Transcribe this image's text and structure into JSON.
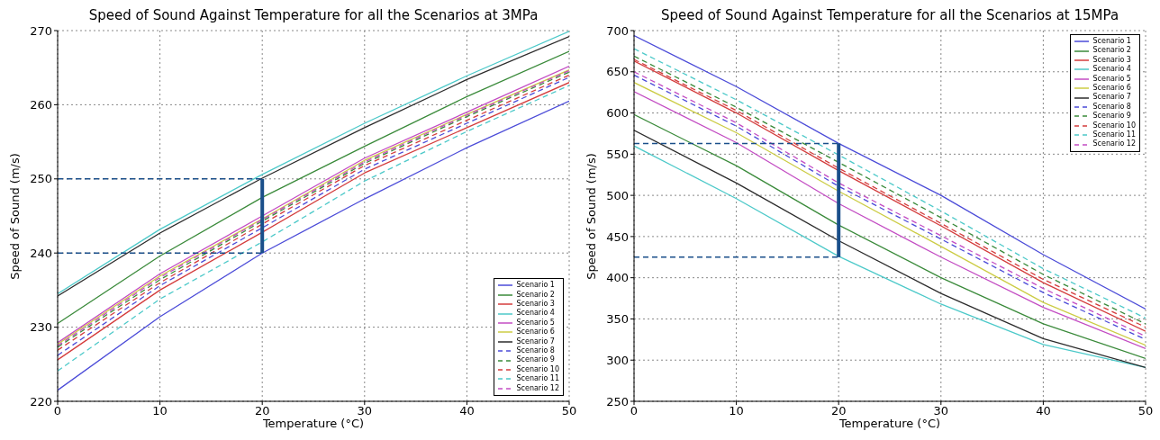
{
  "chart_data": [
    {
      "type": "line",
      "title": "Speed of Sound Against Temperature for all the Scenarios at 3MPa",
      "xlabel": "Temperature (°C)",
      "ylabel": "Speed of Sound (m/s)",
      "x": [
        0,
        10,
        20,
        30,
        40,
        50
      ],
      "xlim": [
        0,
        50
      ],
      "xticks": [
        0,
        10,
        20,
        30,
        40,
        50
      ],
      "ylim": [
        220,
        270
      ],
      "yticks": [
        220,
        230,
        240,
        250,
        260,
        270
      ],
      "grid": true,
      "legend": "bottom right",
      "line_style": "solid",
      "series": [
        {
          "name": "Scenario 1",
          "color": "#4b4bd8",
          "values": [
            221.5,
            231.4,
            240.0,
            247.3,
            254.2,
            260.5
          ]
        },
        {
          "name": "Scenario 2",
          "color": "#3a8a3a",
          "values": [
            230.5,
            239.6,
            247.5,
            254.4,
            261.1,
            267.2
          ]
        },
        {
          "name": "Scenario 3",
          "color": "#d43c3c",
          "values": [
            225.6,
            235.0,
            242.8,
            250.8,
            256.9,
            263.0
          ]
        },
        {
          "name": "Scenario 4",
          "color": "#4cc9c9",
          "values": [
            234.5,
            243.2,
            250.6,
            257.5,
            263.9,
            269.9
          ]
        },
        {
          "name": "Scenario 5",
          "color": "#c34cc3",
          "values": [
            227.9,
            237.2,
            245.0,
            252.8,
            259.0,
            265.2
          ]
        },
        {
          "name": "Scenario 6",
          "color": "#cccc44",
          "values": [
            227.7,
            236.9,
            244.6,
            252.5,
            258.7,
            264.7
          ]
        },
        {
          "name": "Scenario 7",
          "color": "#2b2b2b",
          "values": [
            234.2,
            242.7,
            250.1,
            256.9,
            263.4,
            269.2
          ]
        },
        {
          "name": "Scenario 8",
          "color": "#4b4bd8",
          "line_style": "dashed",
          "values": [
            226.2,
            235.6,
            243.4,
            251.3,
            257.5,
            263.7
          ]
        },
        {
          "name": "Scenario 9",
          "color": "#3a8a3a",
          "line_style": "dashed",
          "values": [
            227.3,
            236.4,
            244.3,
            252.1,
            258.4,
            264.4
          ]
        },
        {
          "name": "Scenario 10",
          "color": "#d43c3c",
          "line_style": "dashed",
          "values": [
            226.9,
            236.0,
            243.9,
            251.8,
            257.9,
            264.0
          ]
        },
        {
          "name": "Scenario 11",
          "color": "#4cc9c9",
          "line_style": "dashed",
          "values": [
            224.1,
            233.8,
            241.5,
            249.7,
            256.4,
            262.6
          ]
        },
        {
          "name": "Scenario 12",
          "color": "#c34cc3",
          "line_style": "dashed",
          "values": [
            227.5,
            236.7,
            244.5,
            252.3,
            258.6,
            264.6
          ]
        },
        {
          "color": "#1a4f8a",
          "line_style": "dashed",
          "values": [
            250,
            250,
            250,
            null,
            null,
            null
          ]
        },
        {
          "color": "#1a4f8a",
          "line_style": "dashed",
          "values": [
            240,
            240,
            240,
            null,
            null,
            null
          ],
          "errors": [
            null,
            null,
            [
              240,
              250
            ],
            null,
            null,
            null
          ]
        }
      ]
    },
    {
      "type": "line",
      "title": "Speed of Sound Against Temperature for all the Scenarios at 15MPa",
      "xlabel": "Temperature (°C)",
      "ylabel": "Speed of Sound (m/s)",
      "x": [
        0,
        10,
        20,
        30,
        40,
        50
      ],
      "xlim": [
        0,
        50
      ],
      "xticks": [
        0,
        10,
        20,
        30,
        40,
        50
      ],
      "ylim": [
        250,
        700
      ],
      "yticks": [
        250,
        300,
        350,
        400,
        450,
        500,
        550,
        600,
        650,
        700
      ],
      "grid": true,
      "legend": "top right",
      "line_style": "solid",
      "series": [
        {
          "name": "Scenario 1",
          "color": "#4b4bd8",
          "values": [
            694,
            632,
            563,
            500,
            428,
            362
          ]
        },
        {
          "name": "Scenario 2",
          "color": "#3a8a3a",
          "values": [
            598,
            536,
            464,
            400,
            344,
            302
          ]
        },
        {
          "name": "Scenario 3",
          "color": "#d43c3c",
          "values": [
            663,
            600,
            530,
            463,
            394,
            335
          ]
        },
        {
          "name": "Scenario 4",
          "color": "#4cc9c9",
          "values": [
            560,
            496,
            426,
            368,
            319,
            291
          ]
        },
        {
          "name": "Scenario 5",
          "color": "#c34cc3",
          "values": [
            626,
            564,
            490,
            425,
            364,
            314
          ]
        },
        {
          "name": "Scenario 6",
          "color": "#cccc44",
          "values": [
            637,
            576,
            505,
            438,
            370,
            318
          ]
        },
        {
          "name": "Scenario 7",
          "color": "#2b2b2b",
          "values": [
            579,
            515,
            445,
            381,
            326,
            291
          ]
        },
        {
          "name": "Scenario 8",
          "color": "#4b4bd8",
          "line_style": "dashed",
          "values": [
            646,
            584,
            511,
            447,
            382,
            325
          ]
        },
        {
          "name": "Scenario 9",
          "color": "#3a8a3a",
          "line_style": "dashed",
          "values": [
            669,
            607,
            540,
            473,
            404,
            344
          ]
        },
        {
          "name": "Scenario 10",
          "color": "#d43c3c",
          "line_style": "dashed",
          "values": [
            665,
            603,
            533,
            466,
            398,
            340
          ]
        },
        {
          "name": "Scenario 11",
          "color": "#4cc9c9",
          "line_style": "dashed",
          "values": [
            678,
            616,
            549,
            481,
            411,
            351
          ]
        },
        {
          "name": "Scenario 12",
          "color": "#c34cc3",
          "line_style": "dashed",
          "values": [
            650,
            588,
            515,
            451,
            387,
            329
          ]
        },
        {
          "color": "#1a4f8a",
          "line_style": "dashed",
          "values": [
            563,
            563,
            563,
            null,
            null,
            null
          ]
        },
        {
          "color": "#1a4f8a",
          "line_style": "dashed",
          "values": [
            425,
            425,
            425,
            null,
            null,
            null
          ],
          "errors": [
            null,
            null,
            [
              425,
              563
            ],
            null,
            null,
            null
          ]
        }
      ]
    }
  ]
}
